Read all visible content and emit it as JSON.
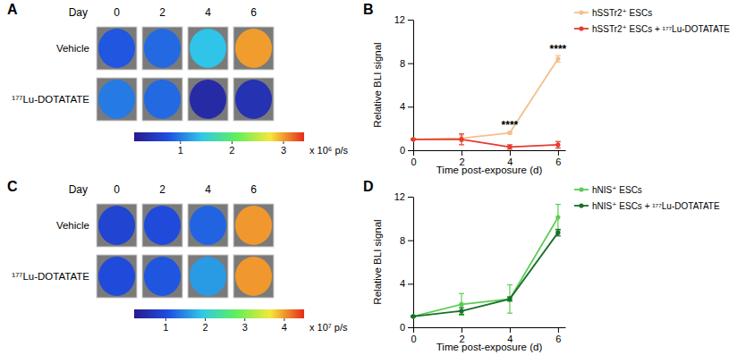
{
  "chart_data": [
    {
      "type": "image",
      "title": "A",
      "column_title": "Day",
      "columns": [
        0,
        2,
        4,
        6
      ],
      "rows": [
        "Vehicle",
        "¹⁷⁷Lu-DOTATATE"
      ],
      "cells": [
        [
          0.8,
          0.9,
          1.4,
          3.0
        ],
        [
          1.0,
          0.9,
          0.3,
          0.4
        ]
      ],
      "colorbar": {
        "range": [
          0.1,
          3.4
        ],
        "ticks": [
          1,
          2,
          3
        ],
        "label": "x 10⁶ p/s"
      }
    },
    {
      "type": "line",
      "title": "B",
      "x": [
        0,
        2,
        4,
        6
      ],
      "xlim": [
        0,
        6.3
      ],
      "xticks": [
        0,
        2,
        4,
        6
      ],
      "ylim": [
        0,
        12
      ],
      "yticks": [
        0,
        4,
        8,
        12
      ],
      "x_label": "Time post-exposure (d)",
      "y_label": "Relative BLI signal",
      "legend": "top-right",
      "marker": "circle",
      "line_style": "solid",
      "series": [
        {
          "name": "hSSTr2⁺ ESCs",
          "color": "#f5bf8e",
          "values": [
            1,
            1.1,
            1.6,
            8.4
          ],
          "errors": [
            0.05,
            0.3,
            0.1,
            0.3
          ]
        },
        {
          "name": "hSSTr2⁺ ESCs + ¹⁷⁷Lu-DOTATATE",
          "color": "#e53b2f",
          "values": [
            1,
            1.0,
            0.3,
            0.5
          ],
          "errors": [
            0.05,
            0.5,
            0.2,
            0.3
          ]
        }
      ],
      "annotations": [
        {
          "text": "****",
          "x": 4
        },
        {
          "text": "****",
          "x": 6
        }
      ]
    },
    {
      "type": "image",
      "title": "C",
      "column_title": "Day",
      "columns": [
        0,
        2,
        4,
        6
      ],
      "rows": [
        "Vehicle",
        "¹⁷⁷Lu-DOTATATE"
      ],
      "cells": [
        [
          0.9,
          1.0,
          1.2,
          4.0
        ],
        [
          1.0,
          1.1,
          1.6,
          4.0
        ]
      ],
      "colorbar": {
        "range": [
          0.2,
          4.5
        ],
        "ticks": [
          1,
          2,
          3,
          4
        ],
        "label": "x 10⁷ p/s"
      }
    },
    {
      "type": "line",
      "title": "D",
      "x": [
        0,
        2,
        4,
        6
      ],
      "xlim": [
        0,
        6.3
      ],
      "xticks": [
        0,
        2,
        4,
        6
      ],
      "ylim": [
        0,
        12
      ],
      "yticks": [
        0,
        4,
        8,
        12
      ],
      "x_label": "Time post-exposure (d)",
      "y_label": "Relative BLI signal",
      "legend": "top-right",
      "marker": "circle",
      "line_style": "solid",
      "series": [
        {
          "name": "hNIS⁺ ESCs",
          "color": "#5ccc52",
          "values": [
            1,
            2.1,
            2.6,
            10.1
          ],
          "errors": [
            0.05,
            1.0,
            1.3,
            1.2
          ]
        },
        {
          "name": "hNIS⁺ ESCs + ¹⁷⁷Lu-DOTATATE",
          "color": "#17702a",
          "values": [
            1,
            1.5,
            2.6,
            8.7
          ],
          "errors": [
            0.05,
            0.3,
            0.2,
            0.3
          ]
        }
      ],
      "annotations": []
    }
  ]
}
